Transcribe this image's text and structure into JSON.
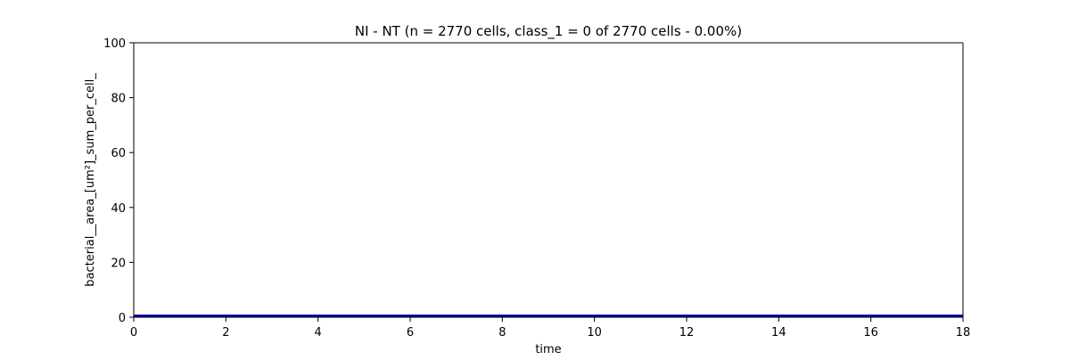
{
  "chart_data": {
    "type": "line",
    "title": "NI - NT (n = 2770 cells, class_1 = 0 of 2770 cells - 0.00%)",
    "xlabel": "time",
    "ylabel": "bacterial__area_[um²]_sum_per_cell_",
    "xlim": [
      0,
      18
    ],
    "ylim": [
      0,
      100
    ],
    "xticks": [
      0,
      2,
      4,
      6,
      8,
      10,
      12,
      14,
      16,
      18
    ],
    "yticks": [
      0,
      20,
      40,
      60,
      80,
      100
    ],
    "grid": false,
    "series": [
      {
        "color": "#0000aa",
        "x": [
          0,
          1,
          2,
          3,
          4,
          5,
          6,
          7,
          8,
          9,
          10,
          11,
          12,
          13,
          14,
          15,
          16,
          17,
          18
        ],
        "y": [
          0,
          0,
          0,
          0,
          0,
          0,
          0,
          0,
          0,
          0,
          0,
          0,
          0,
          0,
          0,
          0,
          0,
          0,
          0
        ]
      }
    ]
  }
}
